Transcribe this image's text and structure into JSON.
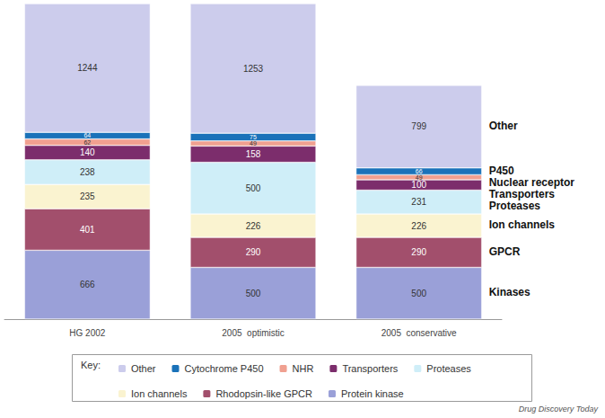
{
  "chart_data": {
    "type": "bar",
    "stacked": true,
    "data_labels": true,
    "grid": false,
    "tick_labels": "x",
    "legend": "bottom",
    "legend_title": "Key:",
    "source": "Drug Discovery Today",
    "categories": [
      "HG 2002",
      "2005  optimistic",
      "2005  conservative"
    ],
    "series": [
      {
        "name": "Protein kinase",
        "annotation": "Kinases",
        "color": "#9aa0d8",
        "values": [
          666,
          500,
          500
        ]
      },
      {
        "name": "Rhodopsin-like GPCR",
        "annotation": "GPCR",
        "color": "#a24f6c",
        "values": [
          401,
          290,
          290
        ]
      },
      {
        "name": "Ion channels",
        "annotation": "Ion channels",
        "color": "#faf3d0",
        "values": [
          235,
          226,
          226
        ]
      },
      {
        "name": "Proteases",
        "annotation": "Proteases",
        "color": "#cfeef8",
        "values": [
          238,
          500,
          231
        ]
      },
      {
        "name": "Transporters",
        "annotation": "Transporters",
        "color": "#7c2d6c",
        "values": [
          140,
          158,
          100
        ]
      },
      {
        "name": "NHR",
        "annotation": "Nuclear receptor",
        "color": "#f0a090",
        "values": [
          62,
          49,
          49
        ]
      },
      {
        "name": "Cytochrome P450",
        "annotation": "P450",
        "color": "#1a72b9",
        "values": [
          64,
          75,
          66
        ]
      },
      {
        "name": "Other",
        "annotation": "Other",
        "color": "#ccccec",
        "values": [
          1244,
          1253,
          799
        ]
      }
    ]
  }
}
